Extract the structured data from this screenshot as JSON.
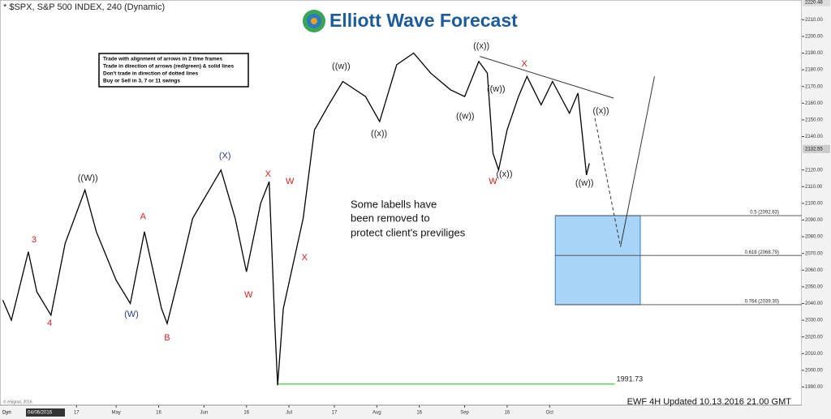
{
  "chart_data": {
    "type": "line",
    "title": "* $SPX, S&P 500 INDEX, 240 (Dynamic)",
    "logo": "Elliott Wave Forecast",
    "rules": [
      "Trade with alignment of arrows in 2 time frames",
      "Trade in direction of arrows (red/green) & solid lines",
      "Don't trade in direction of dotted lines",
      "Buy or Sell in 3, 7 or 11 swings"
    ],
    "note": [
      "Some labells have",
      "been removed to",
      "protect client's previliges"
    ],
    "footer": "EWF 4H Updated 10.13.2016 21.00 GMT",
    "copyright": "© eSignal, 2016",
    "interval_button": "Dyn",
    "cursor_date": "04/06/2016",
    "xlim": [
      -11,
      272
    ],
    "ylim": [
      1981.5,
      2221.8
    ],
    "xticks": [
      {
        "value": 16,
        "label": "17"
      },
      {
        "value": 30,
        "label": "May"
      },
      {
        "value": 45,
        "label": "16"
      },
      {
        "value": 61,
        "label": "Jun"
      },
      {
        "value": 76,
        "label": "16"
      },
      {
        "value": 91,
        "label": "Jul"
      },
      {
        "value": 107,
        "label": "17"
      },
      {
        "value": 122,
        "label": "Aug"
      },
      {
        "value": 137,
        "label": "16"
      },
      {
        "value": 153,
        "label": "Sep"
      },
      {
        "value": 168,
        "label": "16"
      },
      {
        "value": 183,
        "label": "Oct"
      }
    ],
    "yticks": [
      {
        "value": 1990,
        "label": "1990.00"
      },
      {
        "value": 2000,
        "label": "2000.00"
      },
      {
        "value": 2010,
        "label": "2010.00"
      },
      {
        "value": 2020,
        "label": "2020.00"
      },
      {
        "value": 2030,
        "label": "2030.00"
      },
      {
        "value": 2040,
        "label": "2040.00"
      },
      {
        "value": 2050,
        "label": "2050.00"
      },
      {
        "value": 2060,
        "label": "2060.00"
      },
      {
        "value": 2070,
        "label": "2070.00"
      },
      {
        "value": 2080,
        "label": "2080.00"
      },
      {
        "value": 2090,
        "label": "2090.00"
      },
      {
        "value": 2100,
        "label": "2100.00"
      },
      {
        "value": 2110,
        "label": "2110.00"
      },
      {
        "value": 2120,
        "label": "2120.00"
      },
      {
        "value": 2140,
        "label": "2140.00"
      },
      {
        "value": 2150,
        "label": "2150.00"
      },
      {
        "value": 2160,
        "label": "2160.00"
      },
      {
        "value": 2170,
        "label": "2170.00"
      },
      {
        "value": 2180,
        "label": "2180.00"
      },
      {
        "value": 2190,
        "label": "2190.00"
      },
      {
        "value": 2200,
        "label": "2200.00"
      },
      {
        "value": 2210,
        "label": "2210.00"
      }
    ],
    "top_price": {
      "value": 2220.48,
      "label": "2220.48"
    },
    "last_price": {
      "value": 2132.55,
      "label": "2132.55"
    },
    "price": {
      "color": "#000000",
      "x": [
        -10,
        -7,
        -1,
        2,
        7,
        12,
        19,
        23,
        30,
        35,
        40,
        46,
        48,
        53,
        57,
        67,
        72,
        76,
        81,
        84,
        86,
        87,
        89,
        96,
        100,
        105,
        110,
        118,
        123,
        129,
        135,
        141,
        148,
        153,
        158,
        161,
        163,
        165,
        168,
        172,
        175,
        180,
        184,
        190,
        193,
        196,
        197
      ],
      "values": [
        2042,
        2030,
        2071,
        2047,
        2033,
        2076,
        2108,
        2083,
        2054,
        2040,
        2083,
        2037,
        2028,
        2062,
        2091,
        2120,
        2091,
        2059,
        2100,
        2113,
        2028,
        1991,
        2037,
        2091,
        2144,
        2159,
        2173,
        2164,
        2149,
        2183,
        2190,
        2178,
        2168,
        2164,
        2185,
        2178,
        2130,
        2120,
        2144,
        2164,
        2176,
        2159,
        2173,
        2154,
        2166,
        2117,
        2124
      ]
    },
    "projection_dashed": {
      "x": [
        199,
        208
      ],
      "values": [
        2151,
        2074
      ]
    },
    "projection_solid": {
      "x": [
        208,
        220
      ],
      "values": [
        2074,
        2176
      ]
    },
    "trendline": {
      "x": [
        158.4,
        205.6
      ],
      "values": [
        2188,
        2163
      ]
    },
    "low_line": {
      "value": 1991.73,
      "label": "1991.73",
      "x": [
        87,
        206
      ],
      "color": "#00cc00"
    },
    "fib_levels": [
      {
        "value": 2092.63,
        "label": "0.5 (2092.63)"
      },
      {
        "value": 2068.79,
        "label": "0.618 (2068.79)"
      },
      {
        "value": 2039.3,
        "label": "0.764 (2039.30)"
      }
    ],
    "fib_zone_x": [
      185,
      215
    ],
    "fib_color": "#a8d4f8",
    "wave_labels": [
      {
        "text": "3",
        "x": 1,
        "y": 2078,
        "color": "#d42020"
      },
      {
        "text": "4",
        "x": 6.5,
        "y": 2028,
        "color": "#d42020"
      },
      {
        "text": "((W))",
        "x": 20,
        "y": 2115,
        "color": "#222222"
      },
      {
        "text": "A",
        "x": 39.5,
        "y": 2092,
        "color": "#d42020"
      },
      {
        "text": "(W)",
        "x": 35.4,
        "y": 2033.5,
        "color": "#2a3a8a"
      },
      {
        "text": "B",
        "x": 48,
        "y": 2019.4,
        "color": "#d42020"
      },
      {
        "text": "(X)",
        "x": 68.4,
        "y": 2128.2,
        "color": "#2a3a8a"
      },
      {
        "text": "W",
        "x": 76.7,
        "y": 2045.1,
        "color": "#d42020"
      },
      {
        "text": "X",
        "x": 83.6,
        "y": 2117.5,
        "color": "#d42020"
      },
      {
        "text": "W",
        "x": 91.3,
        "y": 2113.1,
        "color": "#d42020"
      },
      {
        "text": "X",
        "x": 96.5,
        "y": 2067.5,
        "color": "#d42020"
      },
      {
        "text": "((w))",
        "x": 109.4,
        "y": 2182,
        "color": "#222222"
      },
      {
        "text": "((x))",
        "x": 122.8,
        "y": 2141.7,
        "color": "#222222"
      },
      {
        "text": "((w))",
        "x": 153.2,
        "y": 2152,
        "color": "#222222"
      },
      {
        "text": "((x))",
        "x": 158.9,
        "y": 2194.2,
        "color": "#222222"
      },
      {
        "text": "((w))",
        "x": 164.1,
        "y": 2168.4,
        "color": "#222222"
      },
      {
        "text": "W",
        "x": 163,
        "y": 2113.1,
        "color": "#d42020"
      },
      {
        "text": "((x))",
        "x": 167,
        "y": 2117.5,
        "color": "#222222"
      },
      {
        "text": "X",
        "x": 174.1,
        "y": 2183.5,
        "color": "#d42020"
      },
      {
        "text": "((x))",
        "x": 201.1,
        "y": 2155.3,
        "color": "#222222"
      },
      {
        "text": "((w))",
        "x": 195.3,
        "y": 2112.1,
        "color": "#222222"
      }
    ]
  }
}
